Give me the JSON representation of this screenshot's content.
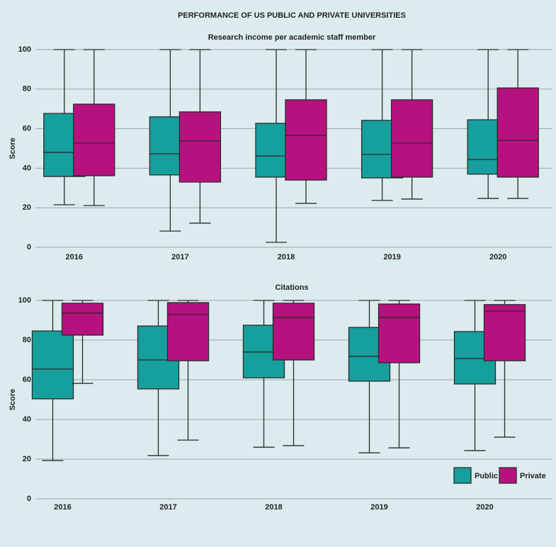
{
  "title": "PERFORMANCE OF US PUBLIC AND PRIVATE UNIVERSITIES",
  "chart_data": [
    {
      "type": "box",
      "title": "Research income per academic staff member",
      "ylabel": "Score",
      "categories": [
        "2016",
        "2017",
        "2018",
        "2019",
        "2020"
      ],
      "ylim": [
        0,
        100
      ],
      "yticks": [
        0,
        20,
        40,
        60,
        80,
        100
      ],
      "grid": true,
      "series": [
        {
          "color": "#16a09d",
          "min": [
            21.5,
            8.2,
            2.5,
            23.7,
            24.7
          ],
          "q1": [
            35.8,
            36.6,
            35.5,
            35.1,
            37.0
          ],
          "median": [
            48.0,
            47.3,
            46.2,
            47.0,
            44.4
          ],
          "q3": [
            67.7,
            66.0,
            62.7,
            64.2,
            64.5
          ],
          "max": [
            100,
            100,
            100,
            100,
            100
          ]
        },
        {
          "color": "#b6127f",
          "min": [
            21.1,
            12.2,
            22.2,
            24.4,
            24.7
          ],
          "q1": [
            36.2,
            33.0,
            34.0,
            35.5,
            35.5
          ],
          "median": [
            52.7,
            53.8,
            56.6,
            52.7,
            54.1
          ],
          "q3": [
            72.4,
            68.5,
            74.6,
            74.6,
            80.6
          ],
          "max": [
            100,
            100,
            100,
            100,
            100
          ]
        }
      ]
    },
    {
      "type": "box",
      "title": "Citations",
      "ylabel": "Score",
      "categories": [
        "2016",
        "2017",
        "2018",
        "2019",
        "2020"
      ],
      "ylim": [
        0,
        100
      ],
      "yticks": [
        0,
        20,
        40,
        60,
        80,
        100
      ],
      "grid": true,
      "legend": "lower right",
      "series": [
        {
          "name": "Public",
          "color": "#16a09d",
          "min": [
            19.3,
            21.8,
            26.0,
            23.2,
            24.3
          ],
          "q1": [
            50.4,
            55.4,
            61.0,
            59.3,
            57.9
          ],
          "median": [
            65.4,
            70.0,
            74.0,
            71.8,
            70.7
          ],
          "q3": [
            84.6,
            87.1,
            87.5,
            86.4,
            84.3
          ],
          "max": [
            100,
            100,
            100,
            100,
            100
          ]
        },
        {
          "name": "Private",
          "color": "#b6127f",
          "min": [
            58.2,
            29.6,
            26.8,
            25.7,
            31.1
          ],
          "q1": [
            82.5,
            69.6,
            70.0,
            68.6,
            69.6
          ],
          "median": [
            93.6,
            92.9,
            91.4,
            91.4,
            94.6
          ],
          "q3": [
            98.6,
            98.9,
            98.6,
            98.2,
            97.9
          ],
          "max": [
            100,
            100,
            100,
            100,
            100
          ]
        }
      ]
    }
  ]
}
